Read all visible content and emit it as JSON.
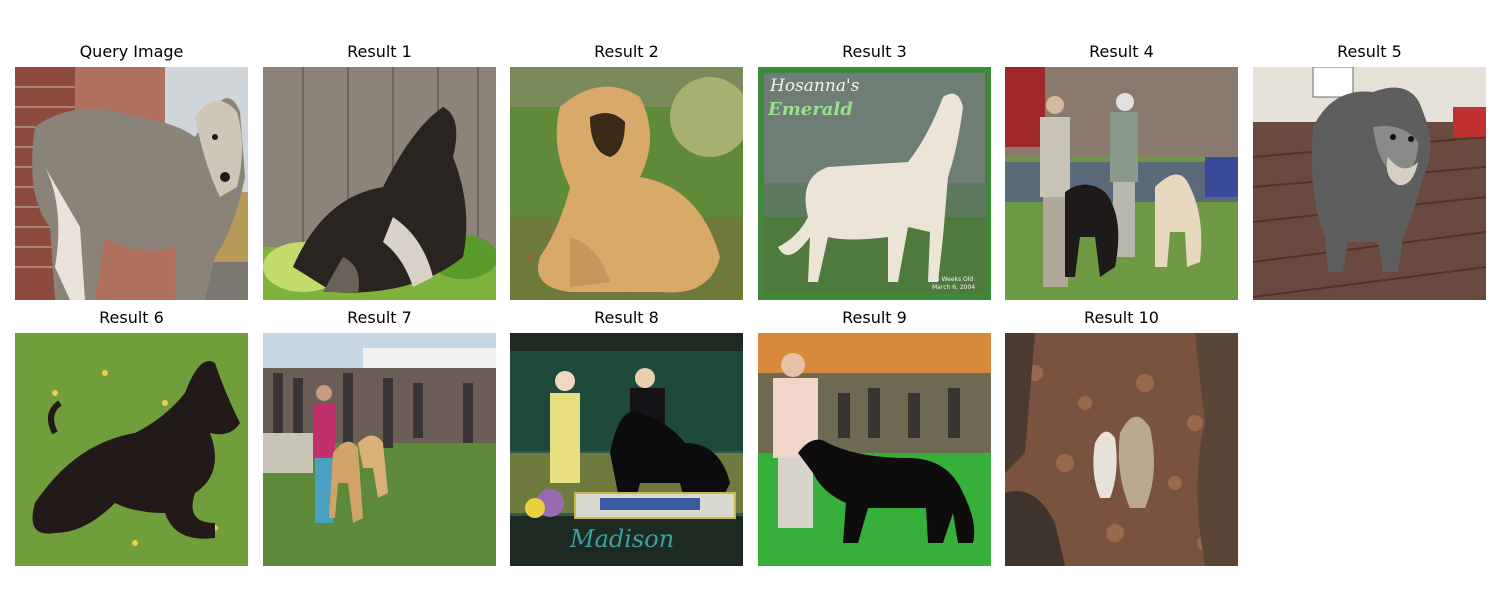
{
  "figure": {
    "panels": [
      {
        "title": "Query Image"
      },
      {
        "title": "Result 1"
      },
      {
        "title": "Result 2"
      },
      {
        "title": "Result 3",
        "image_text": {
          "line1": "Hosanna's",
          "line2": "Emerald",
          "caption1": "25 Weeks Old",
          "caption2": "March 6, 2004"
        }
      },
      {
        "title": "Result 4"
      },
      {
        "title": "Result 5"
      },
      {
        "title": "Result 6"
      },
      {
        "title": "Result 7"
      },
      {
        "title": "Result 8",
        "image_text": {
          "signature": "Madison"
        }
      },
      {
        "title": "Result 9"
      },
      {
        "title": "Result 10"
      }
    ]
  }
}
